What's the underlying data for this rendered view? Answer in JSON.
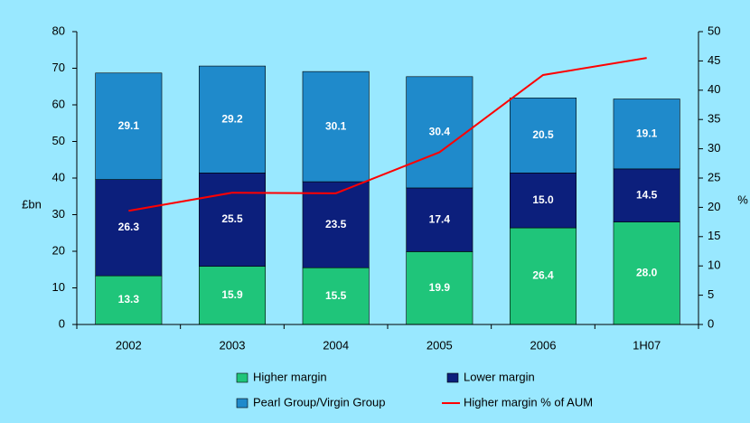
{
  "chart_data": {
    "type": "bar",
    "stacked": true,
    "categories": [
      "2002",
      "2003",
      "2004",
      "2005",
      "2006",
      "1H07"
    ],
    "ylabel": "£bn",
    "y2label": "%",
    "ylim": [
      0,
      80
    ],
    "yticks": [
      0,
      10,
      20,
      30,
      40,
      50,
      60,
      70,
      80
    ],
    "y2lim": [
      0,
      50
    ],
    "y2ticks": [
      0,
      5,
      10,
      15,
      20,
      25,
      30,
      35,
      40,
      45,
      50
    ],
    "series": [
      {
        "name": "Higher margin",
        "color": "#1fc57a",
        "values": [
          13.3,
          15.9,
          15.5,
          19.9,
          26.4,
          28.0
        ],
        "value_labels": [
          "13.3",
          "15.9",
          "15.5",
          "19.9",
          "26.4",
          "28.0"
        ]
      },
      {
        "name": "Lower margin",
        "color": "#0c1f7c",
        "values": [
          26.3,
          25.5,
          23.5,
          17.4,
          15.0,
          14.5
        ],
        "value_labels": [
          "26.3",
          "25.5",
          "23.5",
          "17.4",
          "15.0",
          "14.5"
        ]
      },
      {
        "name": "Pearl Group/Virgin Group",
        "color": "#1f8acb",
        "values": [
          29.1,
          29.2,
          30.1,
          30.4,
          20.5,
          19.1
        ],
        "value_labels": [
          "29.1",
          "29.2",
          "30.1",
          "30.4",
          "20.5",
          "19.1"
        ]
      },
      {
        "name": "Higher margin % of AUM",
        "color": "#ff0000",
        "type": "line",
        "axis": "y2",
        "values": [
          19.4,
          22.5,
          22.4,
          29.4,
          42.6,
          45.5
        ]
      }
    ]
  }
}
